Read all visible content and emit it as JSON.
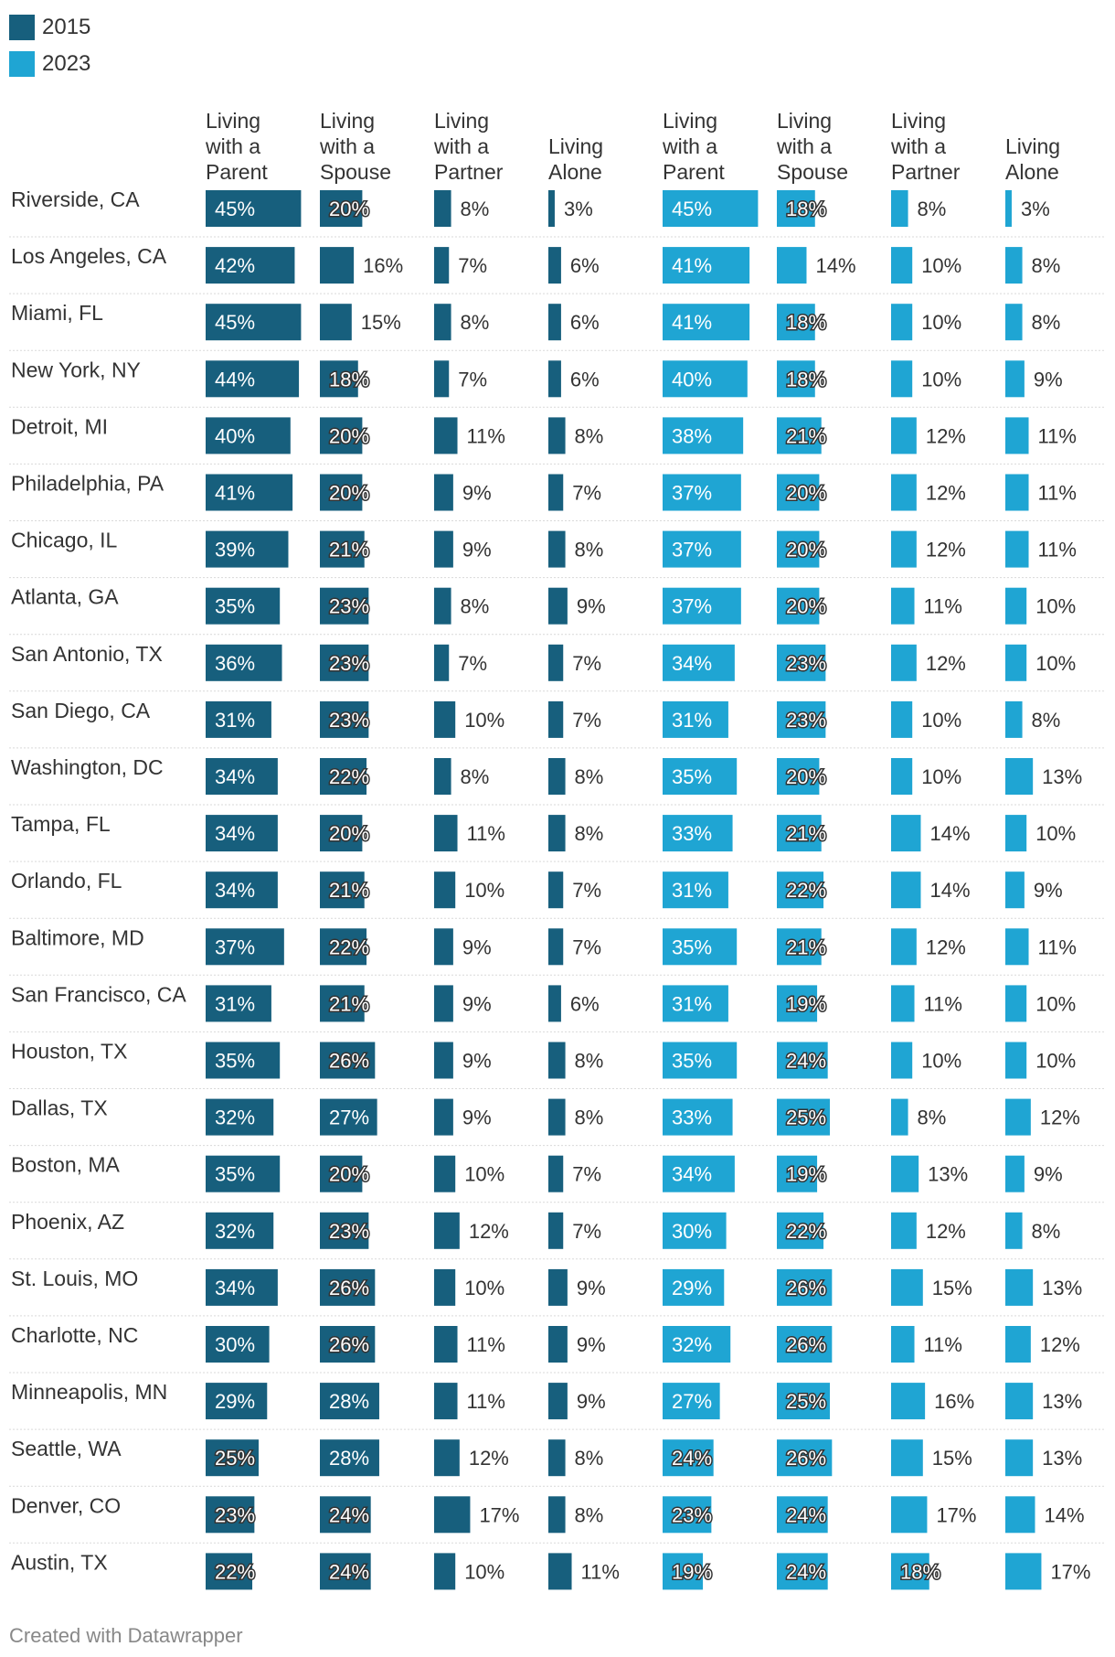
{
  "legend": [
    {
      "label": "2015",
      "color": "#175f7d"
    },
    {
      "label": "2023",
      "color": "#1fa5d3"
    }
  ],
  "footer": "Created with Datawrapper",
  "chart_data": {
    "type": "bar",
    "title": "",
    "xlabel": "",
    "ylabel": "",
    "groups": [
      {
        "name": "2015",
        "color": "#175f7d",
        "columns": [
          [
            "Living",
            "with a",
            "Parent"
          ],
          [
            "Living",
            "with a",
            "Spouse"
          ],
          [
            "Living",
            "with a",
            "Partner"
          ],
          [
            "Living",
            "Alone"
          ]
        ]
      },
      {
        "name": "2023",
        "color": "#1fa5d3",
        "columns": [
          [
            "Living",
            "with a",
            "Parent"
          ],
          [
            "Living",
            "with a",
            "Spouse"
          ],
          [
            "Living",
            "with a",
            "Partner"
          ],
          [
            "Living",
            "Alone"
          ]
        ]
      }
    ],
    "categories": [
      "Riverside, CA",
      "Los Angeles, CA",
      "Miami, FL",
      "New York, NY",
      "Detroit, MI",
      "Philadelphia, PA",
      "Chicago, IL",
      "Atlanta, GA",
      "San Antonio, TX",
      "San Diego, CA",
      "Washington, DC",
      "Tampa, FL",
      "Orlando, FL",
      "Baltimore, MD",
      "San Francisco, CA",
      "Houston, TX",
      "Dallas, TX",
      "Boston, MA",
      "Phoenix, AZ",
      "St. Louis, MO",
      "Charlotte, NC",
      "Minneapolis, MN",
      "Seattle, WA",
      "Denver, CO",
      "Austin, TX"
    ],
    "series": [
      {
        "name": "2015 Living with a Parent",
        "values": [
          45,
          42,
          45,
          44,
          40,
          41,
          39,
          35,
          36,
          31,
          34,
          34,
          34,
          37,
          31,
          35,
          32,
          35,
          32,
          34,
          30,
          29,
          25,
          23,
          22
        ]
      },
      {
        "name": "2015 Living with a Spouse",
        "values": [
          20,
          16,
          15,
          18,
          20,
          20,
          21,
          23,
          23,
          23,
          22,
          20,
          21,
          22,
          21,
          26,
          27,
          20,
          23,
          26,
          26,
          28,
          28,
          24,
          24
        ]
      },
      {
        "name": "2015 Living with a Partner",
        "values": [
          8,
          7,
          8,
          7,
          11,
          9,
          9,
          8,
          7,
          10,
          8,
          11,
          10,
          9,
          9,
          9,
          9,
          10,
          12,
          10,
          11,
          11,
          12,
          17,
          10
        ]
      },
      {
        "name": "2015 Living Alone",
        "values": [
          3,
          6,
          6,
          6,
          8,
          7,
          8,
          9,
          7,
          7,
          8,
          8,
          7,
          7,
          6,
          8,
          8,
          7,
          7,
          9,
          9,
          9,
          8,
          8,
          11
        ]
      },
      {
        "name": "2023 Living with a Parent",
        "values": [
          45,
          41,
          41,
          40,
          38,
          37,
          37,
          37,
          34,
          31,
          35,
          33,
          31,
          35,
          31,
          35,
          33,
          34,
          30,
          29,
          32,
          27,
          24,
          23,
          19
        ]
      },
      {
        "name": "2023 Living with a Spouse",
        "values": [
          18,
          14,
          18,
          18,
          21,
          20,
          20,
          20,
          23,
          23,
          20,
          21,
          22,
          21,
          19,
          24,
          25,
          19,
          22,
          26,
          26,
          25,
          26,
          24,
          24
        ]
      },
      {
        "name": "2023 Living with a Partner",
        "values": [
          8,
          10,
          10,
          10,
          12,
          12,
          12,
          11,
          12,
          10,
          10,
          14,
          14,
          12,
          11,
          10,
          8,
          13,
          12,
          15,
          11,
          16,
          15,
          17,
          18
        ]
      },
      {
        "name": "2023 Living Alone",
        "values": [
          3,
          8,
          8,
          9,
          11,
          11,
          11,
          10,
          10,
          8,
          13,
          10,
          9,
          11,
          10,
          10,
          12,
          9,
          8,
          13,
          12,
          13,
          13,
          14,
          17
        ]
      }
    ],
    "value_suffix": "%"
  }
}
